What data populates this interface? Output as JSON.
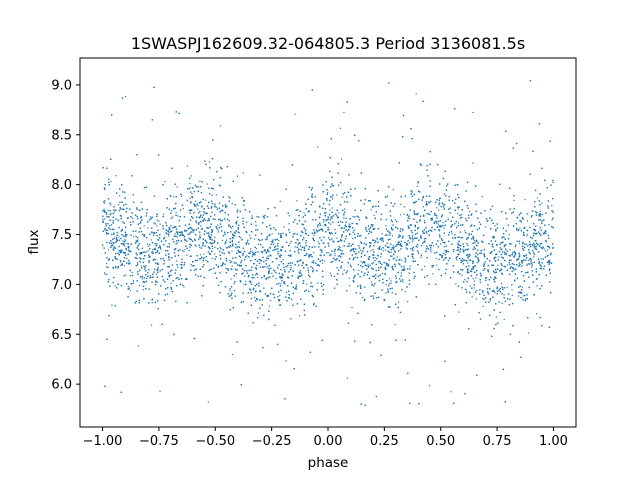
{
  "chart_data": {
    "type": "scatter",
    "title": "1SWASPJ162609.32-064805.3 Period 3136081.5s",
    "xlabel": "phase",
    "ylabel": "flux",
    "xlim": [
      -1.1,
      1.1
    ],
    "ylim": [
      5.57,
      9.27
    ],
    "xticks": [
      -1.0,
      -0.75,
      -0.5,
      -0.25,
      0.0,
      0.25,
      0.5,
      0.75,
      1.0
    ],
    "xtick_labels": [
      "−1.00",
      "−0.75",
      "−0.50",
      "−0.25",
      "0.00",
      "0.25",
      "0.50",
      "0.75",
      "1.00"
    ],
    "yticks": [
      6.0,
      6.5,
      7.0,
      7.5,
      8.0,
      8.5,
      9.0
    ],
    "ytick_labels": [
      "6.0",
      "6.5",
      "7.0",
      "7.5",
      "8.0",
      "8.5",
      "9.0"
    ],
    "grid": false,
    "legend": "none",
    "point_color": "#1f77b4",
    "series": [
      {
        "phase_profile": {
          "x": [
            -1.0,
            -0.9,
            -0.8,
            -0.7,
            -0.6,
            -0.5,
            -0.4,
            -0.3,
            -0.2,
            -0.1,
            0.0,
            0.1,
            0.2,
            0.3,
            0.4,
            0.5,
            0.6,
            0.7,
            0.8,
            0.9,
            1.0
          ],
          "y": [
            7.5,
            7.45,
            7.3,
            7.35,
            7.6,
            7.55,
            7.35,
            7.2,
            7.2,
            7.35,
            7.5,
            7.45,
            7.3,
            7.35,
            7.6,
            7.55,
            7.35,
            7.2,
            7.2,
            7.35,
            7.5
          ]
        },
        "typical_range": [
          6.7,
          8.1
        ],
        "outlier_range": [
          5.75,
          9.05
        ]
      }
    ]
  }
}
